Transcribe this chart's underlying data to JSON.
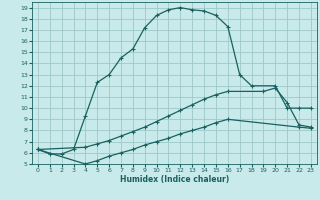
{
  "xlabel": "Humidex (Indice chaleur)",
  "bg_color": "#c8eaea",
  "grid_color": "#a0c8c8",
  "line_color": "#1a6060",
  "xlim": [
    -0.5,
    23.5
  ],
  "ylim": [
    5,
    19.5
  ],
  "xticks": [
    0,
    1,
    2,
    3,
    4,
    5,
    6,
    7,
    8,
    9,
    10,
    11,
    12,
    13,
    14,
    15,
    16,
    17,
    18,
    19,
    20,
    21,
    22,
    23
  ],
  "yticks": [
    5,
    6,
    7,
    8,
    9,
    10,
    11,
    12,
    13,
    14,
    15,
    16,
    17,
    18,
    19
  ],
  "line1_x": [
    0,
    1,
    2,
    3,
    4,
    5,
    6,
    7,
    8,
    9,
    10,
    11,
    12,
    13,
    14,
    15,
    16,
    17,
    18,
    20,
    21,
    22,
    23
  ],
  "line1_y": [
    6.3,
    5.9,
    5.9,
    6.3,
    9.3,
    12.3,
    13.0,
    14.5,
    15.3,
    17.2,
    18.3,
    18.8,
    19.0,
    18.8,
    18.7,
    18.3,
    17.3,
    13.0,
    12.0,
    12.0,
    10.0,
    10.0,
    10.0
  ],
  "line2_x": [
    0,
    4,
    5,
    6,
    7,
    8,
    9,
    10,
    11,
    12,
    13,
    14,
    15,
    16,
    19,
    20,
    21,
    22,
    23
  ],
  "line2_y": [
    6.3,
    6.5,
    6.8,
    7.1,
    7.5,
    7.9,
    8.3,
    8.8,
    9.3,
    9.8,
    10.3,
    10.8,
    11.2,
    11.5,
    11.5,
    11.8,
    10.5,
    8.5,
    8.3
  ],
  "line3_x": [
    0,
    4,
    5,
    6,
    7,
    8,
    9,
    10,
    11,
    12,
    13,
    14,
    15,
    16,
    22,
    23
  ],
  "line3_y": [
    6.3,
    5.0,
    5.3,
    5.7,
    6.0,
    6.3,
    6.7,
    7.0,
    7.3,
    7.7,
    8.0,
    8.3,
    8.7,
    9.0,
    8.3,
    8.2
  ],
  "marker": "+",
  "markersize": 3,
  "linewidth": 0.9
}
